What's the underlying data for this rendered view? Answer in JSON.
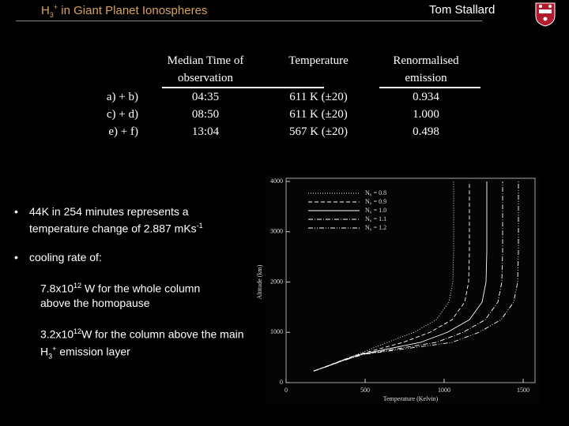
{
  "header": {
    "title": [
      "H",
      "3",
      "+",
      " in Giant Planet Ionospheres"
    ],
    "author": "Tom Stallard"
  },
  "table": {
    "columns": [
      "Median Time of observation",
      "Temperature",
      "Renormalised emission"
    ],
    "rows": [
      [
        "a) + b)",
        "04:35",
        "611 K (±20)",
        "0.934"
      ],
      [
        "c) + d)",
        "08:50",
        "611 K (±20)",
        "1.000"
      ],
      [
        "e) + f)",
        "13:04",
        "567 K (±20)",
        "0.498"
      ]
    ]
  },
  "bullets": [
    [
      "44K in 254 minutes represents a temperature change of 2.887 mKs",
      "-1"
    ],
    [
      "cooling rate of:"
    ]
  ],
  "sub_items": [
    [
      "7.8x10",
      "12",
      " W for the whole column above the homopause"
    ],
    [
      "3.2x10",
      "12",
      "W for the column above the main H",
      "3",
      "+",
      " emission layer"
    ]
  ],
  "chart_data": {
    "type": "line",
    "xlabel": "Temperature (Kelvin)",
    "ylabel": "Altitude (km)",
    "xlim": [
      0,
      1575
    ],
    "ylim": [
      0,
      4000
    ],
    "xticks": [
      0,
      500,
      1000,
      1500
    ],
    "yticks": [
      0,
      1000,
      2000,
      3000,
      4000
    ],
    "series": [
      {
        "name": "N₀ = 0.8",
        "color": "#ffffff",
        "dash": "dotted",
        "x": [
          175,
          260,
          350,
          450,
          640,
          810,
          950,
          1030,
          1055,
          1060,
          1060
        ],
        "y": [
          230,
          330,
          440,
          560,
          800,
          1000,
          1250,
          1600,
          2000,
          2600,
          4000
        ]
      },
      {
        "name": "N₀ = 0.9",
        "color": "#ffffff",
        "dash": "dashed",
        "x": [
          175,
          260,
          350,
          460,
          740,
          910,
          1050,
          1130,
          1155,
          1160,
          1160
        ],
        "y": [
          230,
          330,
          440,
          560,
          800,
          1000,
          1250,
          1600,
          2000,
          2600,
          4000
        ]
      },
      {
        "name": "N₀ = 1.0",
        "color": "#ffffff",
        "dash": "solid",
        "x": [
          175,
          265,
          355,
          470,
          850,
          1020,
          1160,
          1240,
          1265,
          1270,
          1270
        ],
        "y": [
          230,
          330,
          440,
          560,
          800,
          1000,
          1250,
          1600,
          2000,
          2600,
          4000
        ]
      },
      {
        "name": "N₀ = 1.1",
        "color": "#ffffff",
        "dash": "dash-dot",
        "x": [
          175,
          265,
          360,
          480,
          950,
          1120,
          1260,
          1340,
          1365,
          1370,
          1370
        ],
        "y": [
          230,
          330,
          440,
          560,
          800,
          1000,
          1250,
          1600,
          2000,
          2600,
          4000
        ]
      },
      {
        "name": "N₀ = 1.2",
        "color": "#ffffff",
        "dash": "dash-dot-dot",
        "x": [
          175,
          270,
          365,
          490,
          1050,
          1220,
          1360,
          1440,
          1465,
          1470,
          1470
        ],
        "y": [
          230,
          330,
          440,
          560,
          800,
          1000,
          1250,
          1600,
          2000,
          2600,
          4000
        ]
      }
    ]
  }
}
